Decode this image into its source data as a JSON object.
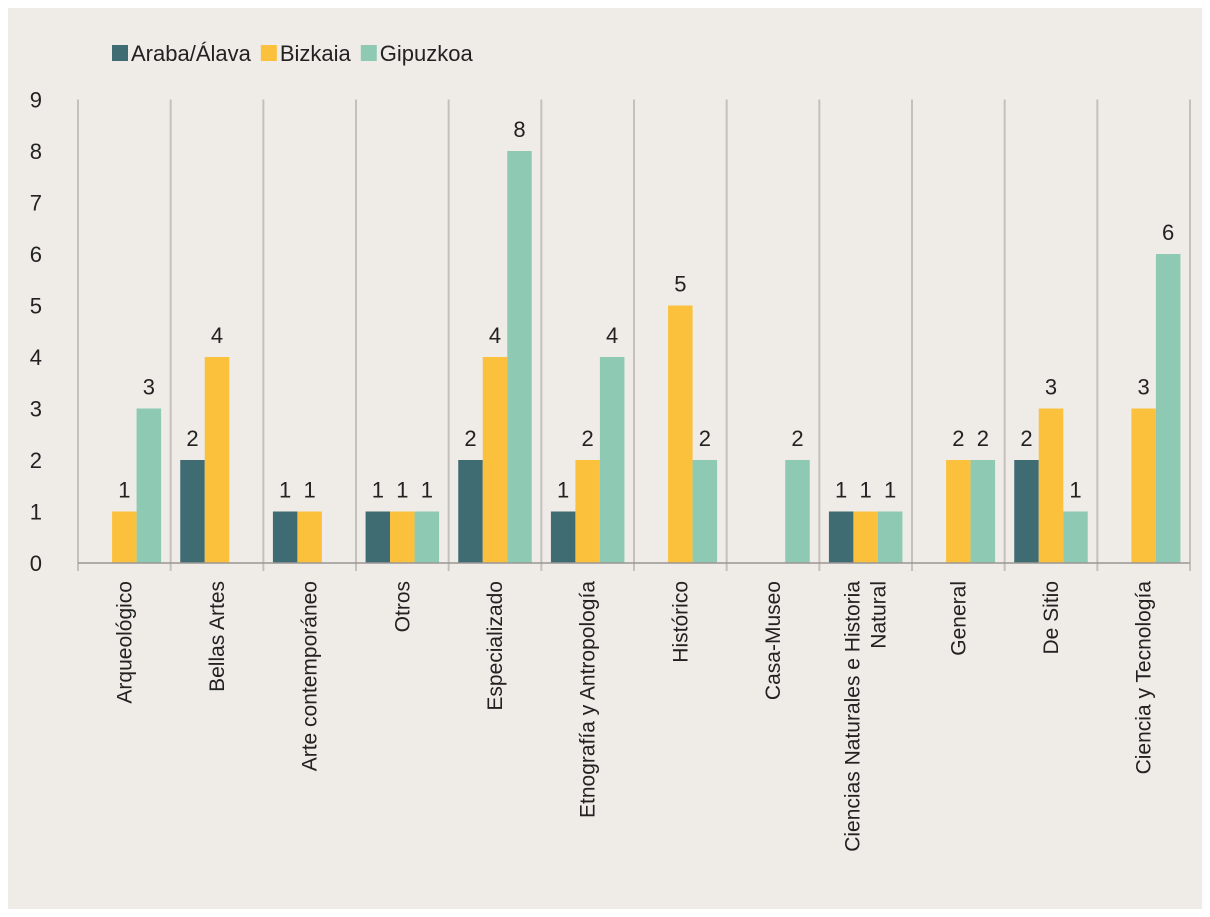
{
  "chart_data": {
    "type": "bar",
    "categories": [
      [
        "Arqueológico"
      ],
      [
        "Bellas Artes"
      ],
      [
        "Arte contemporáneo"
      ],
      [
        "Otros"
      ],
      [
        "Especializado"
      ],
      [
        "Etnografía y Antropología"
      ],
      [
        "Histórico"
      ],
      [
        "Casa-Museo"
      ],
      [
        "Ciencias Naturales e Historia",
        "Natural"
      ],
      [
        "General"
      ],
      [
        "De Sitio"
      ],
      [
        "Ciencia y Tecnología"
      ]
    ],
    "series": [
      {
        "name": "Araba/Álava",
        "color": "#3f6b72",
        "values": [
          null,
          2,
          1,
          1,
          2,
          1,
          null,
          null,
          1,
          null,
          2,
          null
        ]
      },
      {
        "name": "Bizkaia",
        "color": "#fbc13d",
        "values": [
          1,
          4,
          1,
          1,
          4,
          2,
          5,
          null,
          1,
          2,
          3,
          3
        ]
      },
      {
        "name": "Gipuzkoa",
        "color": "#8ecab3",
        "values": [
          3,
          null,
          null,
          1,
          8,
          4,
          2,
          2,
          1,
          2,
          1,
          6
        ]
      }
    ],
    "y_ticks": [
      "0",
      "1",
      "2",
      "3",
      "4",
      "5",
      "6",
      "7",
      "8",
      "9"
    ],
    "ylim": [
      0,
      9
    ],
    "grid": "vertical-category-separators",
    "legend_position": "top-left",
    "title": "",
    "xlabel": "",
    "ylabel": ""
  }
}
